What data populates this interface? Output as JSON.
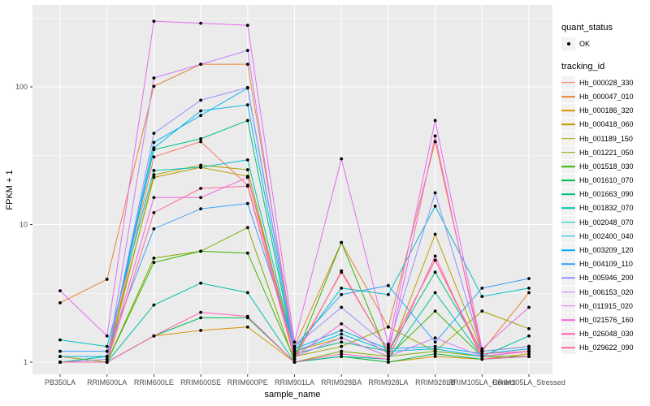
{
  "colors": {
    "panel_bg": "#EBEBEB",
    "grid_major": "#FFFFFF",
    "grid_minor": "#FFFFFF",
    "tick_text": "#4D4D4D",
    "axis_title_text": "#000000",
    "tick_mark": "#333333",
    "legend_key_bg": "#F2F2F2",
    "point_color": "#000000"
  },
  "legend": {
    "quant_status": {
      "title": "quant_status",
      "items": [
        {
          "label": "OK"
        }
      ]
    },
    "tracking_id": {
      "title": "tracking_id"
    }
  },
  "chart_data": {
    "type": "line",
    "title": "",
    "xlabel": "sample_name",
    "ylabel": "FPKM + 1",
    "y_scale": "log10",
    "ylim": [
      0.85,
      400
    ],
    "y_ticks": [
      1,
      10,
      100
    ],
    "y_minor_ticks": [
      3.1623,
      31.623,
      316.23
    ],
    "grid": true,
    "legend_position": "right",
    "marker": "black-point",
    "categories": [
      "PB350LA",
      "RRIM600LA",
      "RRIM600LE",
      "RRIM600SE",
      "RRIM600PE",
      "RRIM901LA",
      "RRIM928BA",
      "RRIM928LA",
      "RRIM928LB",
      "RRIM105LA_Control",
      "RRIM105LA_Stressed"
    ],
    "series": [
      {
        "name": "Hb_000028_330",
        "color": "#F8766D",
        "values": [
          1.0,
          1.0,
          31,
          40,
          19.3,
          1.1,
          4.5,
          1.2,
          5.5,
          1.1,
          1.2
        ]
      },
      {
        "name": "Hb_000047_010",
        "color": "#EA8331",
        "values": [
          2.7,
          4.0,
          101,
          146,
          146,
          1.3,
          7.4,
          1.8,
          40,
          1.2,
          3.2
        ]
      },
      {
        "name": "Hb_000186_320",
        "color": "#D89000",
        "values": [
          1.0,
          1.0,
          1.55,
          1.7,
          1.8,
          1.0,
          1.1,
          1.0,
          1.1,
          1.05,
          1.15
        ]
      },
      {
        "name": "Hb_000418_060",
        "color": "#C09B00",
        "values": [
          1.1,
          1.1,
          22,
          26,
          22.4,
          1.2,
          1.5,
          1.1,
          8.5,
          1.2,
          1.3
        ]
      },
      {
        "name": "Hb_001189_150",
        "color": "#A3A500",
        "values": [
          1.1,
          1.0,
          23,
          27,
          25,
          1.1,
          1.3,
          1.8,
          1.2,
          2.35,
          1.75
        ]
      },
      {
        "name": "Hb_001221_050",
        "color": "#7CAE00",
        "values": [
          1.0,
          1.0,
          5.7,
          6.4,
          9.5,
          1.0,
          1.2,
          1.1,
          1.2,
          1.1,
          1.1
        ]
      },
      {
        "name": "Hb_001518_030",
        "color": "#39B600",
        "values": [
          1.0,
          1.0,
          5.3,
          6.4,
          6.2,
          1.05,
          7.4,
          1.1,
          2.35,
          1.1,
          1.1
        ]
      },
      {
        "name": "Hb_001610_070",
        "color": "#00BB4E",
        "values": [
          1.0,
          1.0,
          1.55,
          2.1,
          2.1,
          1.0,
          1.1,
          1.0,
          1.15,
          1.05,
          1.1
        ]
      },
      {
        "name": "Hb_001663_090",
        "color": "#00BF7D",
        "values": [
          1.0,
          1.1,
          35,
          42,
          57,
          1.15,
          1.4,
          1.2,
          4.5,
          1.2,
          1.3
        ]
      },
      {
        "name": "Hb_001832_070",
        "color": "#00C1A3",
        "values": [
          1.0,
          1.0,
          2.6,
          3.75,
          3.2,
          1.0,
          1.1,
          1.05,
          3.2,
          1.1,
          1.55
        ]
      },
      {
        "name": "Hb_002048_070",
        "color": "#00BFC4",
        "values": [
          1.45,
          1.3,
          24.7,
          26,
          29.5,
          1.2,
          3.45,
          3.1,
          13.6,
          3.0,
          3.45
        ]
      },
      {
        "name": "Hb_002400_040",
        "color": "#00BAE0",
        "values": [
          1.1,
          1.1,
          36,
          67,
          74,
          1.2,
          1.6,
          1.2,
          1.25,
          1.1,
          1.2
        ]
      },
      {
        "name": "Hb_003209_120",
        "color": "#00B0F6",
        "values": [
          1.1,
          1.1,
          39.5,
          62,
          98,
          1.25,
          1.7,
          1.25,
          1.3,
          1.15,
          1.25
        ]
      },
      {
        "name": "Hb_004109_110",
        "color": "#35A2FF",
        "values": [
          1.2,
          1.2,
          9.3,
          13,
          14.2,
          1.3,
          3.1,
          3.6,
          1.4,
          3.45,
          4.05
        ]
      },
      {
        "name": "Hb_005946_200",
        "color": "#9590FF",
        "values": [
          1.0,
          1.05,
          46,
          80,
          99,
          1.3,
          2.5,
          1.3,
          17,
          1.2,
          1.3
        ]
      },
      {
        "name": "Hb_006153_020",
        "color": "#C77CFF",
        "values": [
          1.0,
          1.0,
          116,
          146,
          184,
          1.1,
          1.5,
          1.1,
          1.5,
          1.1,
          1.2
        ]
      },
      {
        "name": "Hb_011915_020",
        "color": "#E76BF3",
        "values": [
          3.3,
          1.55,
          300,
          290,
          280,
          1.4,
          30,
          1.35,
          57,
          1.25,
          2.5
        ]
      },
      {
        "name": "Hb_021576_160",
        "color": "#FA62DB",
        "values": [
          1.0,
          1.0,
          15.7,
          15.7,
          22,
          1.1,
          1.9,
          1.15,
          44,
          1.1,
          1.2
        ]
      },
      {
        "name": "Hb_026048_030",
        "color": "#FF62BC",
        "values": [
          1.0,
          1.0,
          1.55,
          2.3,
          2.15,
          1.0,
          1.15,
          1.05,
          5.9,
          1.05,
          1.1
        ]
      },
      {
        "name": "Hb_029622_090",
        "color": "#FF6A98",
        "values": [
          1.0,
          1.0,
          12.2,
          18.3,
          19,
          1.05,
          4.6,
          1.2,
          5.5,
          1.15,
          1.2
        ]
      }
    ]
  }
}
